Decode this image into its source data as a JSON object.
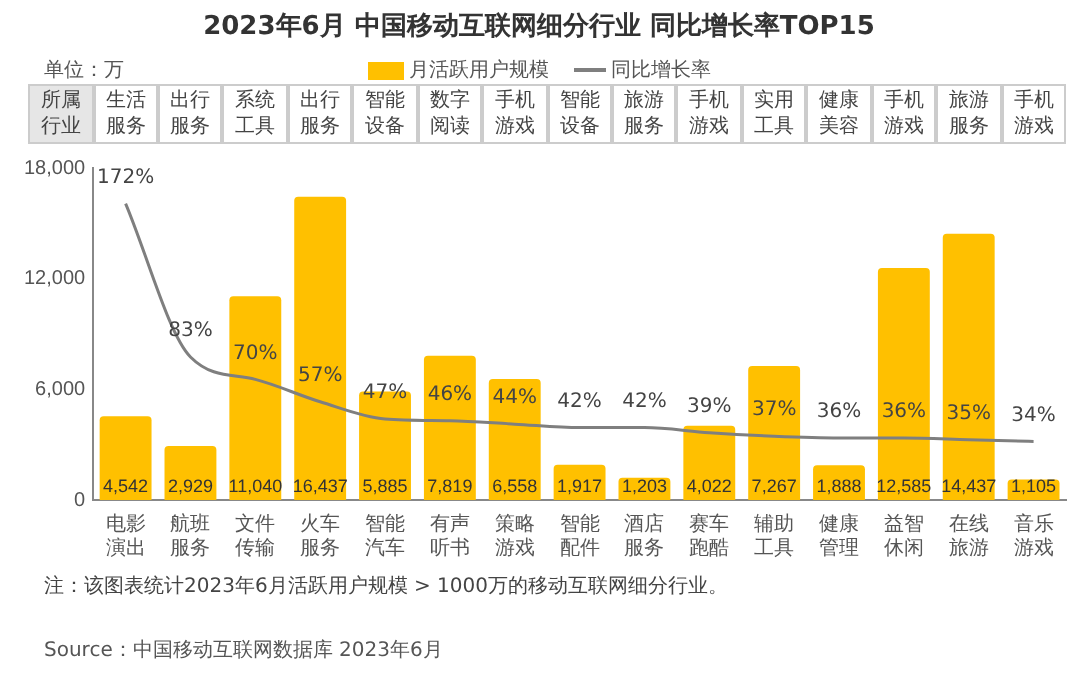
{
  "chart_data": {
    "type": "bar",
    "title": "2023年6月 中国移动互联网细分行业 同比增长率TOP15",
    "categories": [
      "电影演出",
      "航班服务",
      "文件传输",
      "火车服务",
      "智能汽车",
      "有声听书",
      "策略游戏",
      "智能配件",
      "酒店服务",
      "赛车跑酷",
      "辅助工具",
      "健康管理",
      "益智休闲",
      "在线旅游",
      "音乐游戏"
    ],
    "series": [
      {
        "name": "月活跃用户规模",
        "color": "#ffc000",
        "values": [
          4542,
          2929,
          11040,
          16437,
          5885,
          7819,
          6558,
          1917,
          1203,
          4022,
          7267,
          1888,
          12585,
          14437,
          1105
        ],
        "value_labels": [
          "4,542",
          "2,929",
          "11,040",
          "16,437",
          "5,885",
          "7,819",
          "6,558",
          "1,917",
          "1,203",
          "4,022",
          "7,267",
          "1,888",
          "12,585",
          "14,437",
          "1,105"
        ]
      },
      {
        "name": "同比增长率",
        "type": "line",
        "axis": "y2",
        "color": "#7f7f7f",
        "values": [
          172,
          83,
          70,
          57,
          47,
          46,
          44,
          42,
          42,
          39,
          37,
          36,
          36,
          35,
          34
        ],
        "value_labels": [
          "172%",
          "83%",
          "70%",
          "57%",
          "47%",
          "46%",
          "44%",
          "42%",
          "42%",
          "39%",
          "37%",
          "36%",
          "36%",
          "35%",
          "34%"
        ]
      }
    ],
    "ylim": [
      0,
      18000
    ],
    "yticks": [
      {
        "value": 0,
        "label": "0"
      },
      {
        "value": 6000,
        "label": "6,000"
      },
      {
        "value": 12000,
        "label": "12,000"
      },
      {
        "value": 18000,
        "label": "18,000"
      }
    ],
    "grid": false,
    "legend": "top",
    "marker": "none",
    "annotations": [
      "单位：万",
      "所属行业",
      "生活服务",
      "出行服务",
      "系统工具",
      "出行服务",
      "智能设备",
      "数字阅读",
      "手机游戏",
      "智能设备",
      "旅游服务",
      "手机游戏",
      "实用工具",
      "健康美容",
      "手机游戏",
      "旅游服务",
      "手机游戏",
      "注：该图表统计2023年6月活跃用户规模 > 1000万的移动互联网细分行业。",
      "Source：中国移动互联网数据库 2023年6月"
    ]
  }
}
